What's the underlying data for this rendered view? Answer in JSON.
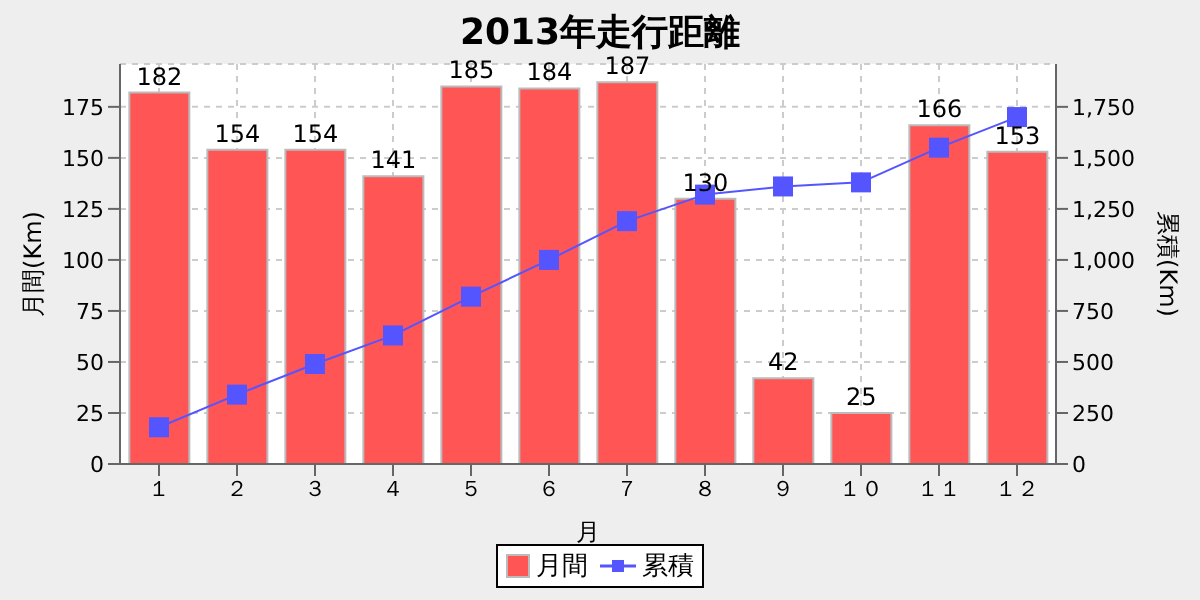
{
  "chart_data": {
    "type": "bar",
    "title": "2013年走行距離",
    "xlabel": "月",
    "ylabel": "月間(Km)",
    "y2label": "累積(Km)",
    "categories": [
      "１",
      "２",
      "３",
      "４",
      "５",
      "６",
      "７",
      "８",
      "９",
      "１０",
      "１１",
      "１２"
    ],
    "series": [
      {
        "name": "月間",
        "color": "#ff5555",
        "values": [
          182,
          154,
          154,
          141,
          185,
          184,
          187,
          130,
          42,
          25,
          166,
          153
        ],
        "value_labels": [
          "182",
          "154",
          "154",
          "141",
          "185",
          "184",
          "187",
          "130",
          "42",
          "25",
          "166",
          "153"
        ]
      },
      {
        "name": "累積",
        "type": "line",
        "axis": "y2",
        "color": "#5555ff",
        "marker": "square",
        "values": [
          180,
          340,
          490,
          630,
          820,
          1000,
          1190,
          1320,
          1360,
          1380,
          1550,
          1700
        ]
      }
    ],
    "ylim": [
      0,
      196
    ],
    "yticks": [
      0,
      25,
      50,
      75,
      100,
      125,
      150,
      175
    ],
    "y2lim": [
      0,
      1960
    ],
    "y2ticks": [
      0,
      {
        "value": 250,
        "label": "250"
      },
      {
        "value": 500,
        "label": "500"
      },
      {
        "value": 750,
        "label": "750"
      },
      {
        "value": 1000,
        "label": "1,000"
      },
      {
        "value": 1250,
        "label": "1,250"
      },
      {
        "value": 1500,
        "label": "1,500"
      },
      {
        "value": 1750,
        "label": "1,750"
      }
    ],
    "grid": true,
    "legend": "bottom"
  }
}
